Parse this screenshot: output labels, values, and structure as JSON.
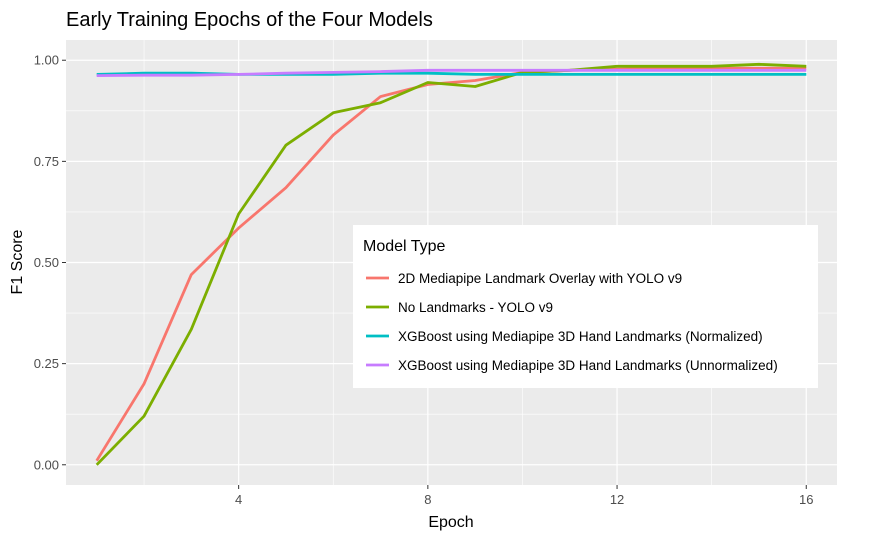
{
  "chart_data": {
    "type": "line",
    "title": "Early Training Epochs of the Four Models",
    "xlabel": "Epoch",
    "ylabel": "F1 Score",
    "xlim": [
      0.35,
      16.65
    ],
    "ylim": [
      -0.05,
      1.05
    ],
    "x_ticks": [
      4,
      8,
      12,
      16
    ],
    "y_ticks": [
      0.0,
      0.25,
      0.5,
      0.75,
      1.0
    ],
    "x_tick_labels": [
      "4",
      "8",
      "12",
      "16"
    ],
    "y_tick_labels": [
      "0.00",
      "0.25",
      "0.50",
      "0.75",
      "1.00"
    ],
    "grid": true,
    "legend": {
      "title": "Model Type",
      "placement": "inside-right"
    },
    "series": [
      {
        "name": "2D Mediapipe Landmark Overlay with YOLO v9",
        "color": "#F8766D",
        "x": [
          1,
          2,
          3,
          4,
          5,
          6,
          7,
          8,
          9,
          10,
          11,
          12,
          13,
          14,
          15,
          16
        ],
        "y": [
          0.01,
          0.2,
          0.47,
          0.585,
          0.685,
          0.815,
          0.91,
          0.94,
          0.95,
          0.97,
          0.975,
          0.978,
          0.98,
          0.98,
          0.98,
          0.98
        ]
      },
      {
        "name": "No Landmarks - YOLO v9",
        "color": "#7CAE00",
        "x": [
          1,
          2,
          3,
          4,
          5,
          6,
          7,
          8,
          9,
          10,
          11,
          12,
          13,
          14,
          15,
          16
        ],
        "y": [
          0.0,
          0.12,
          0.335,
          0.62,
          0.79,
          0.87,
          0.895,
          0.945,
          0.935,
          0.97,
          0.975,
          0.985,
          0.985,
          0.985,
          0.99,
          0.985
        ]
      },
      {
        "name": "XGBoost using Mediapipe 3D Hand Landmarks (Normalized)",
        "color": "#00BFC4",
        "x": [
          1,
          2,
          3,
          4,
          5,
          6,
          7,
          8,
          9,
          10,
          11,
          12,
          13,
          14,
          15,
          16
        ],
        "y": [
          0.965,
          0.968,
          0.968,
          0.965,
          0.965,
          0.965,
          0.968,
          0.968,
          0.965,
          0.965,
          0.965,
          0.965,
          0.965,
          0.965,
          0.965,
          0.965
        ]
      },
      {
        "name": "XGBoost using Mediapipe 3D Hand Landmarks (Unnormalized)",
        "color": "#C77CFF",
        "x": [
          1,
          2,
          3,
          4,
          5,
          6,
          7,
          8,
          9,
          10,
          11,
          12,
          13,
          14,
          15,
          16
        ],
        "y": [
          0.962,
          0.963,
          0.963,
          0.965,
          0.968,
          0.97,
          0.972,
          0.975,
          0.975,
          0.975,
          0.975,
          0.975,
          0.975,
          0.975,
          0.975,
          0.975
        ]
      }
    ]
  }
}
